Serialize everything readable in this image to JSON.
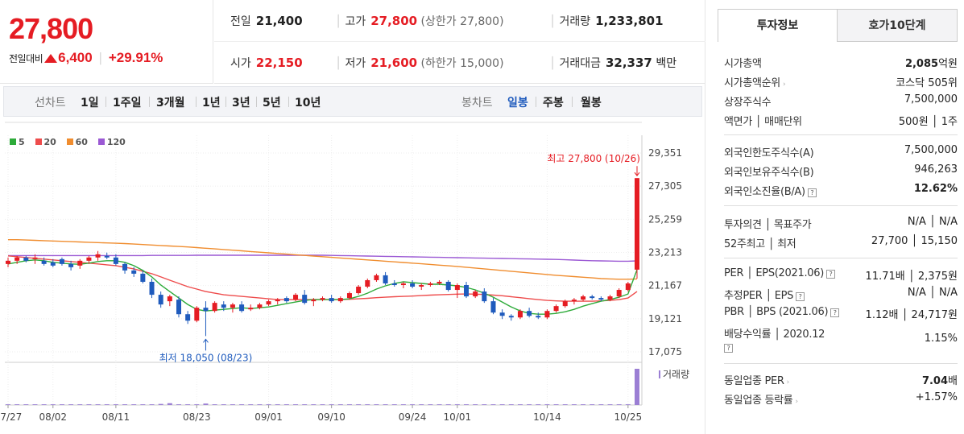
{
  "price": {
    "current": "27,800",
    "change_label": "전일대비",
    "change": "6,400",
    "change_pct": "+29.91%"
  },
  "info": {
    "prev_label": "전일",
    "prev": "21,400",
    "high_label": "고가",
    "high": "27,800",
    "upper_limit": "(상한가 27,800)",
    "volume_label": "거래량",
    "volume": "1,233,801",
    "open_label": "시가",
    "open": "22,150",
    "low_label": "저가",
    "low": "21,600",
    "lower_limit": "(하한가 15,000)",
    "amount_label": "거래대금",
    "amount": "32,337",
    "amount_unit": "백만"
  },
  "period": {
    "line_label": "선차트",
    "ranges": [
      "1일",
      "1주일",
      "3개월",
      "1년",
      "3년",
      "5년",
      "10년"
    ],
    "candle_label": "봉차트",
    "candle_types": [
      "일봉",
      "주봉",
      "월봉"
    ],
    "selected": "일봉"
  },
  "colors": {
    "up": "#e51c23",
    "down": "#1f5bbd",
    "ma5": "#2eab3a",
    "ma20": "#ee4c4c",
    "ma60": "#f08d2f",
    "ma120": "#9b59d4",
    "volume": "#9b7fd4"
  },
  "chart_data": {
    "type": "candlestick",
    "legend": [
      "5",
      "20",
      "60",
      "120"
    ],
    "y_ticks": [
      "29,351",
      "27,305",
      "25,259",
      "23,213",
      "21,167",
      "19,121",
      "17,075"
    ],
    "ylim": [
      17075,
      29351
    ],
    "x_ticks": [
      "07/27",
      "08/02",
      "08/11",
      "08/23",
      "09/01",
      "09/10",
      "09/24",
      "10/01",
      "10/14",
      "10/25"
    ],
    "high_annotation": "최고 27,800 (10/26)",
    "low_annotation": "최저 18,050 (08/23)",
    "volume_label": "거래량",
    "candles": [
      [
        22500,
        22900,
        22300,
        22700
      ],
      [
        22700,
        23000,
        22500,
        22900
      ],
      [
        22900,
        23000,
        22600,
        22700
      ],
      [
        22800,
        23100,
        22500,
        22900
      ],
      [
        22700,
        22900,
        22400,
        22500
      ],
      [
        22600,
        22800,
        22300,
        22400
      ],
      [
        22800,
        22900,
        22400,
        22500
      ],
      [
        22500,
        22700,
        22100,
        22300
      ],
      [
        22400,
        22800,
        22200,
        22700
      ],
      [
        22700,
        23000,
        22500,
        22900
      ],
      [
        22900,
        23300,
        22700,
        23100
      ],
      [
        23000,
        23200,
        22800,
        22900
      ],
      [
        22900,
        23100,
        22400,
        22500
      ],
      [
        22500,
        22600,
        21900,
        22100
      ],
      [
        22100,
        22300,
        21700,
        21900
      ],
      [
        21900,
        22100,
        21300,
        21400
      ],
      [
        21400,
        21600,
        20400,
        20600
      ],
      [
        20600,
        20800,
        19800,
        20000
      ],
      [
        20200,
        20600,
        19900,
        20500
      ],
      [
        20300,
        20500,
        19200,
        19400
      ],
      [
        19400,
        19600,
        18800,
        19000
      ],
      [
        19000,
        19900,
        18900,
        19800
      ],
      [
        19800,
        20200,
        18050,
        19600
      ],
      [
        19600,
        20200,
        19500,
        20100
      ],
      [
        20000,
        20200,
        19600,
        19800
      ],
      [
        19800,
        20100,
        19500,
        20000
      ],
      [
        20000,
        20200,
        19500,
        19600
      ],
      [
        19700,
        20000,
        19600,
        19800
      ],
      [
        19800,
        20100,
        19700,
        20000
      ],
      [
        20000,
        20300,
        19900,
        20200
      ],
      [
        20200,
        20400,
        20000,
        20300
      ],
      [
        20400,
        20500,
        20100,
        20200
      ],
      [
        20300,
        20700,
        20200,
        20600
      ],
      [
        20600,
        20900,
        20000,
        20100
      ],
      [
        20200,
        20400,
        19900,
        20300
      ],
      [
        20300,
        20500,
        20200,
        20400
      ],
      [
        20400,
        20600,
        20100,
        20200
      ],
      [
        20200,
        20500,
        20100,
        20400
      ],
      [
        20400,
        20800,
        20300,
        20700
      ],
      [
        20700,
        21200,
        20600,
        21100
      ],
      [
        21100,
        21600,
        21000,
        21500
      ],
      [
        21500,
        21900,
        21400,
        21800
      ],
      [
        21800,
        22000,
        21200,
        21300
      ],
      [
        21300,
        21500,
        21100,
        21200
      ],
      [
        21200,
        21400,
        21000,
        21300
      ],
      [
        21300,
        21500,
        21000,
        21100
      ],
      [
        21100,
        21300,
        20900,
        21200
      ],
      [
        21200,
        21400,
        21100,
        21300
      ],
      [
        21300,
        21500,
        21200,
        21400
      ],
      [
        21400,
        21500,
        20800,
        20900
      ],
      [
        20900,
        21300,
        20400,
        21200
      ],
      [
        21200,
        21400,
        20400,
        20500
      ],
      [
        20500,
        20900,
        20400,
        20800
      ],
      [
        20800,
        21000,
        20100,
        20200
      ],
      [
        20200,
        20400,
        19400,
        19500
      ],
      [
        19500,
        19700,
        19100,
        19300
      ],
      [
        19300,
        19400,
        19000,
        19200
      ],
      [
        19200,
        19700,
        19100,
        19600
      ],
      [
        19600,
        19800,
        19200,
        19300
      ],
      [
        19300,
        19500,
        19100,
        19200
      ],
      [
        19200,
        19700,
        19100,
        19600
      ],
      [
        19600,
        20000,
        19500,
        19900
      ],
      [
        19900,
        20300,
        19800,
        20200
      ],
      [
        20200,
        20400,
        20000,
        20300
      ],
      [
        20300,
        20600,
        20200,
        20500
      ],
      [
        20500,
        20600,
        20300,
        20400
      ],
      [
        20400,
        20500,
        20200,
        20300
      ],
      [
        20300,
        20600,
        20200,
        20500
      ],
      [
        20500,
        21000,
        20400,
        20900
      ],
      [
        20900,
        21400,
        20800,
        21300
      ],
      [
        22150,
        27800,
        21600,
        27800
      ]
    ],
    "ma5": [
      22500,
      22600,
      22700,
      22750,
      22700,
      22600,
      22550,
      22500,
      22480,
      22550,
      22650,
      22700,
      22700,
      22600,
      22400,
      22100,
      21700,
      21200,
      20800,
      20400,
      20000,
      19700,
      19600,
      19650,
      19700,
      19750,
      19800,
      19750,
      19800,
      19850,
      19950,
      20050,
      20150,
      20250,
      20300,
      20300,
      20300,
      20300,
      20350,
      20500,
      20700,
      20950,
      21150,
      21300,
      21400,
      21350,
      21300,
      21250,
      21250,
      21200,
      21150,
      21050,
      20900,
      20700,
      20450,
      20150,
      19850,
      19600,
      19450,
      19400,
      19400,
      19450,
      19550,
      19700,
      19900,
      20050,
      20200,
      20300,
      20450,
      20650,
      22150
    ],
    "ma20": [
      23000,
      22950,
      22900,
      22850,
      22800,
      22750,
      22700,
      22650,
      22600,
      22550,
      22500,
      22450,
      22400,
      22300,
      22200,
      22050,
      21900,
      21700,
      21500,
      21300,
      21100,
      20950,
      20800,
      20700,
      20600,
      20550,
      20500,
      20450,
      20400,
      20350,
      20300,
      20300,
      20300,
      20300,
      20300,
      20300,
      20300,
      20300,
      20320,
      20350,
      20380,
      20420,
      20450,
      20480,
      20500,
      20520,
      20550,
      20580,
      20600,
      20620,
      20640,
      20650,
      20640,
      20620,
      20580,
      20540,
      20480,
      20420,
      20360,
      20300,
      20250,
      20220,
      20200,
      20200,
      20200,
      20200,
      20220,
      20250,
      20300,
      20400,
      20800
    ],
    "ma60": [
      24000,
      24000,
      23980,
      23960,
      23940,
      23920,
      23900,
      23880,
      23860,
      23840,
      23820,
      23800,
      23780,
      23760,
      23730,
      23700,
      23670,
      23640,
      23610,
      23580,
      23550,
      23510,
      23470,
      23430,
      23390,
      23350,
      23310,
      23270,
      23230,
      23190,
      23150,
      23110,
      23070,
      23030,
      22990,
      22950,
      22910,
      22870,
      22830,
      22790,
      22750,
      22710,
      22670,
      22630,
      22590,
      22550,
      22510,
      22470,
      22430,
      22390,
      22350,
      22300,
      22250,
      22200,
      22150,
      22100,
      22050,
      22000,
      21950,
      21900,
      21850,
      21800,
      21760,
      21720,
      21680,
      21640,
      21600,
      21580,
      21560,
      21560,
      21580
    ],
    "ma120": [
      23020,
      23020,
      23020,
      23020,
      23020,
      23020,
      23020,
      23020,
      23020,
      23020,
      23020,
      23020,
      23020,
      23020,
      23020,
      23020,
      23030,
      23030,
      23030,
      23030,
      23030,
      23040,
      23040,
      23040,
      23040,
      23040,
      23040,
      23040,
      23040,
      23040,
      23040,
      23040,
      23040,
      23040,
      23040,
      23040,
      23030,
      23020,
      23010,
      23000,
      22990,
      22980,
      22970,
      22960,
      22950,
      22940,
      22930,
      22920,
      22910,
      22900,
      22890,
      22880,
      22870,
      22860,
      22850,
      22840,
      22830,
      22820,
      22810,
      22800,
      22790,
      22780,
      22760,
      22740,
      22720,
      22700,
      22690,
      22680,
      22670,
      22670,
      22690
    ],
    "volume": [
      2,
      2,
      2,
      2,
      2,
      2,
      2,
      2,
      2,
      2,
      2,
      2,
      2,
      2,
      2,
      2,
      2,
      3,
      5,
      2,
      2,
      2,
      4,
      2,
      2,
      2,
      2,
      2,
      2,
      2,
      2,
      2,
      2,
      2,
      2,
      2,
      2,
      2,
      2,
      2,
      2,
      2,
      2,
      2,
      2,
      2,
      2,
      2,
      2,
      2,
      2,
      2,
      2,
      2,
      2,
      2,
      2,
      2,
      2,
      2,
      2,
      2,
      2,
      2,
      2,
      2,
      2,
      2,
      2,
      2,
      100
    ]
  },
  "right": {
    "tabs": [
      "투자정보",
      "호가10단계"
    ],
    "s1": [
      {
        "k": "시가총액",
        "v": "2,085",
        "u": "억원"
      },
      {
        "k": "시가총액순위",
        "v": "코스닥 505위"
      },
      {
        "k": "상장주식수",
        "v": "7,500,000"
      },
      {
        "k": "액면가 │ 매매단위",
        "v": "500원 │ 1주"
      }
    ],
    "s2": [
      {
        "k": "외국인한도주식수(A)",
        "v": "7,500,000"
      },
      {
        "k": "외국인보유주식수(B)",
        "v": "946,263"
      },
      {
        "k": "외국인소진율(B/A)",
        "v": "12.62%"
      }
    ],
    "s3": [
      {
        "k": "투자의견 │ 목표주가",
        "v": "N/A │ N/A"
      },
      {
        "k": "52주최고 │ 최저",
        "v": "27,700 │ 15,150"
      }
    ],
    "s4": [
      {
        "k": "PER │ EPS(2021.06)",
        "v": "11.71배 │ 2,375원"
      },
      {
        "k": "추정PER │ EPS",
        "v": "N/A │ N/A"
      },
      {
        "k": "PBR │ BPS (2021.06)",
        "v": "1.12배 │ 24,717원"
      },
      {
        "k": "배당수익률 │ 2020.12",
        "v": "1.15%"
      }
    ],
    "s5": [
      {
        "k": "동일업종 PER",
        "v": "7.04",
        "u": "배"
      },
      {
        "k": "동일업종 등락률",
        "v": "+1.57%"
      }
    ]
  }
}
